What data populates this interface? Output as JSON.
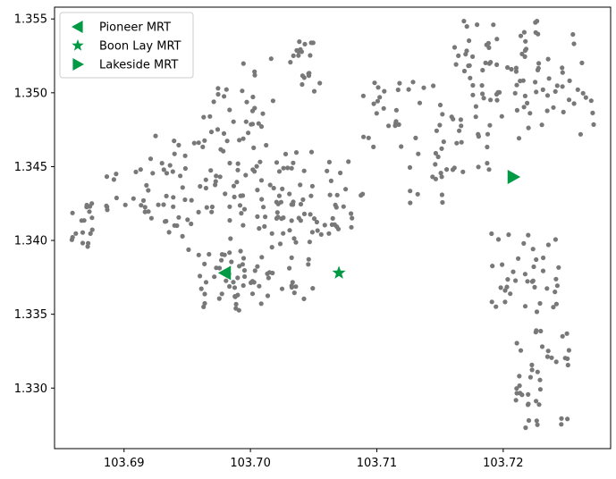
{
  "chart_data": {
    "type": "scatter",
    "title": "",
    "xlabel": "",
    "ylabel": "",
    "xlim": [
      103.6845,
      103.7285
    ],
    "ylim": [
      1.3259,
      1.3558
    ],
    "x_ticks": [
      103.69,
      103.7,
      103.71,
      103.72
    ],
    "x_tick_labels": [
      "103.69",
      "103.70",
      "103.71",
      "103.72"
    ],
    "y_ticks": [
      1.33,
      1.335,
      1.34,
      1.345,
      1.35,
      1.355
    ],
    "y_tick_labels": [
      "1.330",
      "1.335",
      "1.340",
      "1.345",
      "1.350",
      "1.355"
    ],
    "grid": false,
    "legend_position": "top-left",
    "colors": {
      "points": "#787878",
      "stations": "#009944",
      "axes": "#000000"
    },
    "stations": [
      {
        "name": "Pioneer MRT",
        "x": 103.698,
        "y": 1.3378,
        "marker": "triangle-left"
      },
      {
        "name": "Boon Lay MRT",
        "x": 103.707,
        "y": 1.3378,
        "marker": "star"
      },
      {
        "name": "Lakeside MRT",
        "x": 103.7208,
        "y": 1.3443,
        "marker": "triangle-right"
      }
    ],
    "point_clusters": [
      {
        "x": [
          103.6855,
          103.6875
        ],
        "y": [
          1.3395,
          1.3425
        ],
        "n": 18,
        "seed": 11
      },
      {
        "x": [
          103.6885,
          103.692
        ],
        "y": [
          1.3395,
          1.345
        ],
        "n": 18,
        "seed": 12
      },
      {
        "x": [
          103.692,
          103.696
        ],
        "y": [
          1.341,
          1.3475
        ],
        "n": 24,
        "seed": 13
      },
      {
        "x": [
          103.693,
          103.698
        ],
        "y": [
          1.339,
          1.344
        ],
        "n": 20,
        "seed": 14
      },
      {
        "x": [
          103.696,
          103.7
        ],
        "y": [
          1.342,
          1.3505
        ],
        "n": 32,
        "seed": 15
      },
      {
        "x": [
          103.699,
          103.702
        ],
        "y": [
          1.3455,
          1.3525
        ],
        "n": 18,
        "seed": 16
      },
      {
        "x": [
          103.696,
          103.7
        ],
        "y": [
          1.3352,
          1.3395
        ],
        "n": 36,
        "seed": 17
      },
      {
        "x": [
          103.7,
          103.705
        ],
        "y": [
          1.3355,
          1.34
        ],
        "n": 30,
        "seed": 18
      },
      {
        "x": [
          103.698,
          103.703
        ],
        "y": [
          1.34,
          1.3455
        ],
        "n": 36,
        "seed": 19
      },
      {
        "x": [
          103.702,
          103.707
        ],
        "y": [
          1.34,
          1.346
        ],
        "n": 40,
        "seed": 20
      },
      {
        "x": [
          103.706,
          103.709
        ],
        "y": [
          1.3405,
          1.3455
        ],
        "n": 14,
        "seed": 21
      },
      {
        "x": [
          103.7025,
          103.705
        ],
        "y": [
          1.3515,
          1.3535
        ],
        "n": 12,
        "seed": 22
      },
      {
        "x": [
          103.704,
          103.7055
        ],
        "y": [
          1.35,
          1.3515
        ],
        "n": 8,
        "seed": 23
      },
      {
        "x": [
          103.708,
          103.715
        ],
        "y": [
          1.3455,
          1.3508
        ],
        "n": 28,
        "seed": 24
      },
      {
        "x": [
          103.7115,
          103.717
        ],
        "y": [
          1.3425,
          1.346
        ],
        "n": 12,
        "seed": 25
      },
      {
        "x": [
          103.7145,
          103.72
        ],
        "y": [
          1.3445,
          1.35
        ],
        "n": 30,
        "seed": 26
      },
      {
        "x": [
          103.716,
          103.723
        ],
        "y": [
          1.349,
          1.3549
        ],
        "n": 50,
        "seed": 27
      },
      {
        "x": [
          103.721,
          103.7272
        ],
        "y": [
          1.3468,
          1.3545
        ],
        "n": 40,
        "seed": 28
      },
      {
        "x": [
          103.719,
          103.725
        ],
        "y": [
          1.335,
          1.3405
        ],
        "n": 40,
        "seed": 29
      },
      {
        "x": [
          103.721,
          103.7255
        ],
        "y": [
          1.3315,
          1.334
        ],
        "n": 16,
        "seed": 30
      },
      {
        "x": [
          103.721,
          103.723
        ],
        "y": [
          1.3272,
          1.332
        ],
        "n": 22,
        "seed": 31
      },
      {
        "x": [
          103.724,
          103.7255
        ],
        "y": [
          1.3275,
          1.329
        ],
        "n": 3,
        "seed": 32
      }
    ]
  }
}
